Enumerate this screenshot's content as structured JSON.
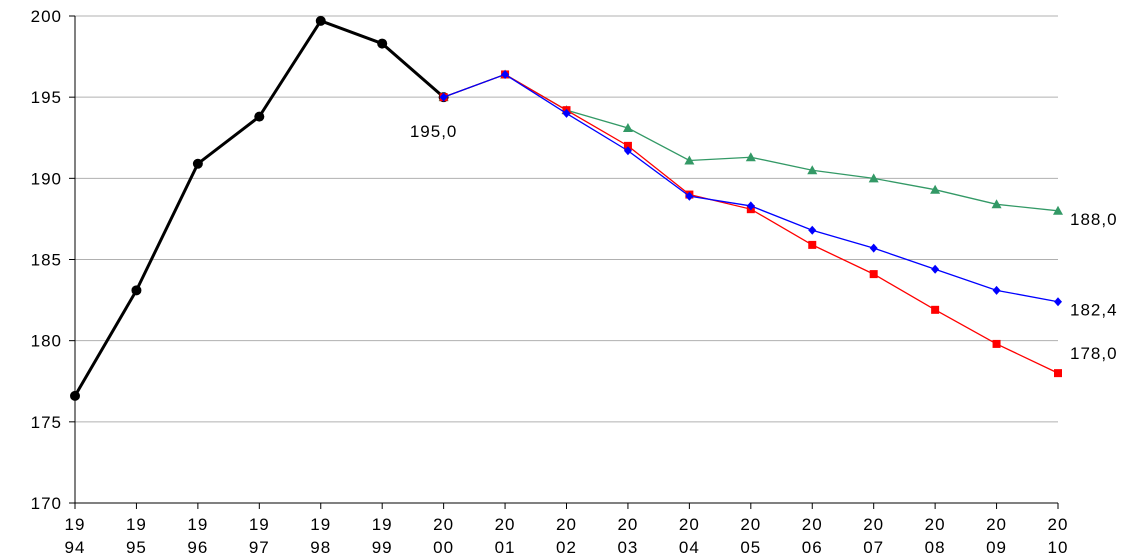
{
  "chart_data": {
    "type": "line",
    "categories": [
      "1994",
      "1995",
      "1996",
      "1997",
      "1998",
      "1999",
      "2000",
      "2001",
      "2002",
      "2003",
      "2004",
      "2005",
      "2006",
      "2007",
      "2008",
      "2009",
      "2010"
    ],
    "ylim": [
      170,
      200
    ],
    "yticks": [
      170,
      175,
      180,
      185,
      190,
      195,
      200
    ],
    "grid": true,
    "series": [
      {
        "color": "#000000",
        "marker": "circle",
        "values": [
          176.6,
          183.1,
          190.9,
          193.8,
          199.7,
          198.3,
          195.0,
          null,
          null,
          null,
          null,
          null,
          null,
          null,
          null,
          null,
          null
        ],
        "value_labels": [
          null,
          null,
          null,
          null,
          null,
          null,
          "195,0",
          null,
          null,
          null,
          null,
          null,
          null,
          null,
          null,
          null,
          null
        ]
      },
      {
        "color": "#339966",
        "marker": "triangle",
        "values": [
          null,
          null,
          null,
          null,
          null,
          null,
          195.0,
          196.4,
          194.2,
          193.1,
          191.1,
          191.3,
          190.5,
          190.0,
          189.3,
          188.4,
          188.0
        ],
        "value_labels": [
          null,
          null,
          null,
          null,
          null,
          null,
          null,
          null,
          null,
          null,
          null,
          null,
          null,
          null,
          null,
          null,
          "188,0"
        ]
      },
      {
        "color": "#ff0000",
        "marker": "square",
        "values": [
          null,
          null,
          null,
          null,
          null,
          null,
          195.0,
          196.4,
          194.2,
          192.0,
          189.0,
          188.1,
          185.9,
          184.1,
          181.9,
          179.8,
          178.0
        ],
        "value_labels": [
          null,
          null,
          null,
          null,
          null,
          null,
          null,
          null,
          null,
          null,
          null,
          null,
          null,
          null,
          null,
          null,
          "178,0"
        ]
      },
      {
        "color": "#0000ff",
        "marker": "diamond",
        "values": [
          null,
          null,
          null,
          null,
          null,
          null,
          195.0,
          196.4,
          194.0,
          191.7,
          188.9,
          188.3,
          186.8,
          185.7,
          184.4,
          183.1,
          182.4
        ],
        "value_labels": [
          null,
          null,
          null,
          null,
          null,
          null,
          null,
          null,
          null,
          null,
          null,
          null,
          null,
          null,
          null,
          null,
          "182,4"
        ]
      }
    ]
  }
}
